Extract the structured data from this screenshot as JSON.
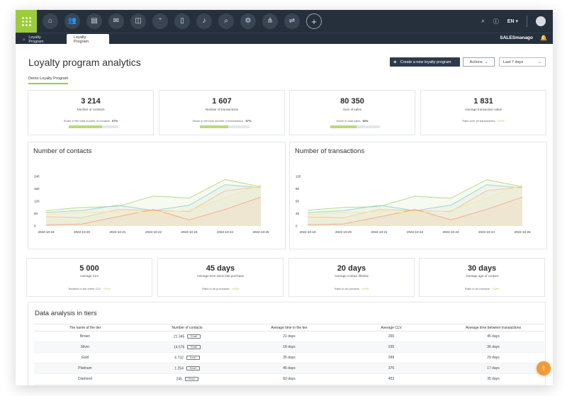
{
  "tabs": [
    {
      "label": "Loyalty Program"
    },
    {
      "label": "Loyalty Program"
    }
  ],
  "nav_icons": [
    "home-icon",
    "contacts-icon",
    "document-icon",
    "mail-icon",
    "campaign-icon",
    "add-contact-icon",
    "mobile-icon",
    "notification-icon",
    "search-analytics-icon",
    "settings-icon",
    "network-icon",
    "workflow-icon",
    "add-icon"
  ],
  "header": {
    "language": "EN",
    "brand": "SALESmanago"
  },
  "page": {
    "title": "Loyalty program analytics",
    "create_button": "Create a new loyalty program",
    "actions_button": "Actions",
    "date_range": "Last 7 days",
    "program_tab": "Demo Loyalty Program"
  },
  "stats_top": [
    {
      "value": "3 214",
      "label": "Number of contacts",
      "share_label": "Share in the total number of contacts",
      "share_value": "67%",
      "share_fraction": 0.67
    },
    {
      "value": "1 607",
      "label": "Number of transactions",
      "share_label": "Share in the total number of transactions",
      "share_value": "57%",
      "share_fraction": 0.57
    },
    {
      "value": "80 350",
      "label": "Sum of sales",
      "share_label": "Share in total sales",
      "share_value": "53%",
      "share_fraction": 0.53
    },
    {
      "value": "1 831",
      "label": "Average transaction value",
      "share_label": "Ratio over all transactions",
      "share_value": "+10%"
    }
  ],
  "stats_bottom": [
    {
      "value": "5 000",
      "label": "Average CLV",
      "ratio_label": "Relation to the entire CLV",
      "ratio_value": "+10%"
    },
    {
      "value": "45 days",
      "label": "Average time since last purchase",
      "ratio_label": "Ratio to all purchases",
      "ratio_value": "+10%"
    },
    {
      "value": "20 days",
      "label": "Average contact lifetime",
      "ratio_label": "Ratio to all contacts",
      "ratio_value": "+10%"
    },
    {
      "value": "30 days",
      "label": "Average age of contact",
      "ratio_label": "Ratio to all contacts",
      "ratio_value": "+10%"
    }
  ],
  "chart_data": [
    {
      "type": "area",
      "title": "Number of contacts",
      "categories": [
        "2022-10-19",
        "2022-10-20",
        "2022-10-21",
        "2022-10-22",
        "2022-10-23",
        "2022-10-24",
        "2022-10-25"
      ],
      "yticks": [
        0,
        60,
        120,
        180,
        240
      ],
      "ylim": [
        0,
        240
      ],
      "grid": false,
      "series": [
        {
          "color": "#b9d98b",
          "values": [
            75,
            90,
            95,
            145,
            135,
            225,
            190
          ]
        },
        {
          "color": "#9fd3d1",
          "values": [
            65,
            75,
            100,
            75,
            100,
            200,
            185
          ]
        },
        {
          "color": "#f5c6a0",
          "values": [
            45,
            40,
            80,
            75,
            70,
            170,
            190
          ]
        },
        {
          "color": "#f6a48a",
          "values": [
            5,
            10,
            45,
            80,
            30,
            80,
            140
          ]
        },
        {
          "color": "#f6e7a6",
          "values": [
            55,
            65,
            70,
            65,
            75,
            135,
            200
          ]
        }
      ]
    },
    {
      "type": "area",
      "title": "Number of transactions",
      "categories": [
        "2022-10-19",
        "2022-10-20",
        "2022-10-21",
        "2022-10-22",
        "2022-10-23",
        "2022-10-24",
        "2022-10-25"
      ],
      "yticks": [
        0,
        30,
        60,
        90,
        120
      ],
      "ylim": [
        0,
        120
      ],
      "grid": false,
      "series": [
        {
          "color": "#b9d98b",
          "values": [
            38,
            45,
            47,
            72,
            67,
            112,
            95
          ]
        },
        {
          "color": "#9fd3d1",
          "values": [
            32,
            37,
            50,
            37,
            50,
            100,
            92
          ]
        },
        {
          "color": "#f5c6a0",
          "values": [
            22,
            20,
            40,
            37,
            35,
            85,
            95
          ]
        },
        {
          "color": "#f6a48a",
          "values": [
            3,
            5,
            22,
            40,
            15,
            40,
            70
          ]
        },
        {
          "color": "#f6e7a6",
          "values": [
            27,
            32,
            35,
            32,
            37,
            67,
            100
          ]
        }
      ]
    }
  ],
  "tiers": {
    "title": "Data analysis in tiers",
    "columns": [
      "The name of the tier",
      "Number of contacts",
      "Average time in the tier",
      "Average CLV",
      "Average time between transactions"
    ],
    "pill_label": "Email",
    "rows": [
      {
        "name": "Brown",
        "contacts": "21 345",
        "time_in_tier": "21 days",
        "clv": "200",
        "between": "45 days"
      },
      {
        "name": "Silver",
        "contacts": "14 676",
        "time_in_tier": "18 days",
        "clv": "235",
        "between": "36 days"
      },
      {
        "name": "Gold",
        "contacts": "6 732",
        "time_in_tier": "35 days",
        "clv": "299",
        "between": "29 days"
      },
      {
        "name": "Platinum",
        "contacts": "1 254",
        "time_in_tier": "45 days",
        "clv": "376",
        "between": "17 days"
      },
      {
        "name": "Diamond",
        "contacts": "245",
        "time_in_tier": "60 days",
        "clv": "453",
        "between": "35 days"
      }
    ]
  },
  "colors": {
    "accent": "#9ccc3c",
    "dark": "#26303d",
    "fab": "#f39a34"
  }
}
